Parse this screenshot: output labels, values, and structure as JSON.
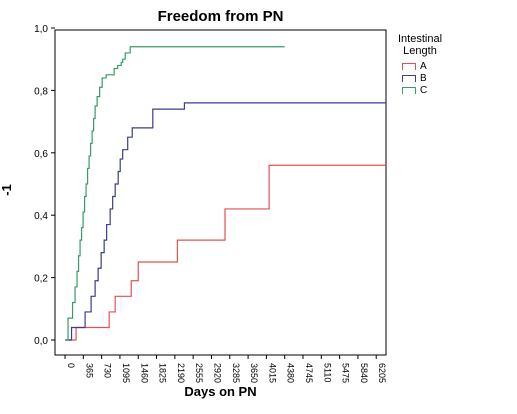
{
  "chart_data": {
    "type": "line",
    "title": "Freedom from PN",
    "xlabel": "Days on PN",
    "ylabel": "-1",
    "xlim": [
      -200,
      6400
    ],
    "ylim": [
      0,
      1.0
    ],
    "xticks": [
      "0",
      "365",
      "730",
      "1095",
      "1460",
      "1825",
      "2190",
      "2555",
      "2920",
      "3285",
      "3650",
      "4015",
      "4380",
      "4745",
      "5110",
      "5475",
      "5840",
      "6205"
    ],
    "yticks": [
      "0,0",
      "0,2",
      "0,4",
      "0,6",
      "0,8",
      "1,0"
    ],
    "legend_title": [
      "Intestinal",
      "Length"
    ],
    "legend_position": "right",
    "grid": false,
    "series": [
      {
        "name": "A",
        "color": "#e05252",
        "x": [
          0,
          220,
          450,
          880,
          1000,
          1320,
          1460,
          2240,
          3190,
          4070,
          6400
        ],
        "y": [
          0,
          0.04,
          0.04,
          0.09,
          0.14,
          0.19,
          0.25,
          0.32,
          0.42,
          0.56,
          0.56
        ]
      },
      {
        "name": "B",
        "color": "#3c3c88",
        "x": [
          0,
          130,
          400,
          520,
          600,
          660,
          720,
          780,
          830,
          900,
          950,
          1000,
          1060,
          1100,
          1150,
          1250,
          1340,
          1750,
          2380,
          6400
        ],
        "y": [
          0,
          0.04,
          0.09,
          0.14,
          0.19,
          0.23,
          0.28,
          0.32,
          0.37,
          0.42,
          0.46,
          0.5,
          0.54,
          0.58,
          0.61,
          0.65,
          0.68,
          0.74,
          0.76,
          0.76
        ],
        "x_style": "stair"
      },
      {
        "name": "C",
        "color": "#3a9a6a",
        "x": [
          0,
          60,
          150,
          200,
          240,
          270,
          300,
          330,
          360,
          390,
          420,
          450,
          480,
          510,
          540,
          570,
          600,
          640,
          690,
          740,
          820,
          980,
          1050,
          1120,
          1150,
          1200,
          1300,
          4380
        ],
        "y": [
          0,
          0.07,
          0.12,
          0.17,
          0.22,
          0.27,
          0.32,
          0.36,
          0.41,
          0.46,
          0.5,
          0.55,
          0.59,
          0.63,
          0.67,
          0.71,
          0.75,
          0.78,
          0.81,
          0.84,
          0.85,
          0.87,
          0.88,
          0.89,
          0.9,
          0.92,
          0.94,
          0.94
        ]
      }
    ]
  }
}
